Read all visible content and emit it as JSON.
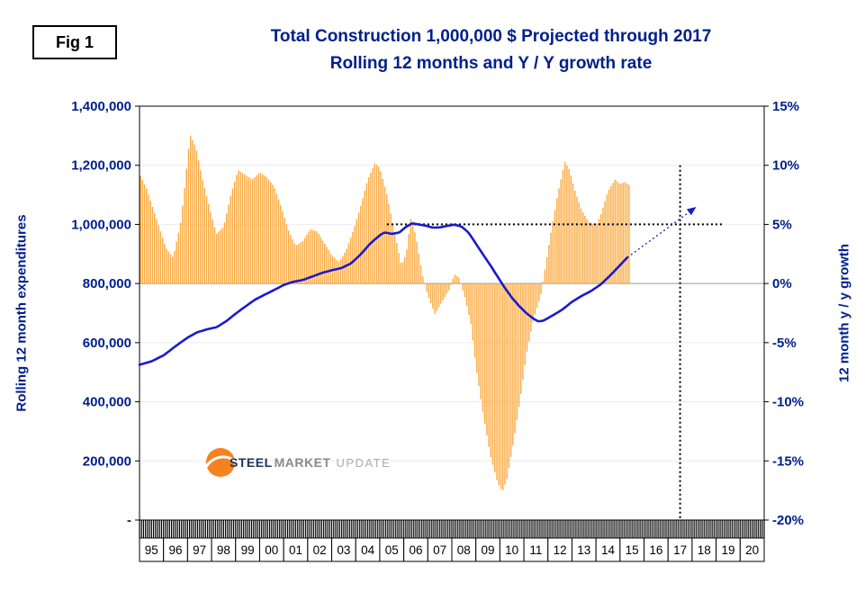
{
  "figure_label": "Fig 1",
  "title": {
    "line1": "Total Construction 1,000,000 $ Projected through 2017",
    "line2": "Rolling 12 months and Y / Y growth rate"
  },
  "logo": {
    "steel": "STEEL",
    "market": "MARKET",
    "update": "UPDATE"
  },
  "colors": {
    "navy": "#00208B",
    "bar": "#F9A93F",
    "line": "#1A1ACD",
    "black": "#000000",
    "grid": "#ECECEC",
    "logo_orange": "#F58220",
    "logo_navy": "#17365D",
    "logo_gray": "#8A8A8A",
    "logo_light_gray": "#ADADAD"
  },
  "chart_data": {
    "type": "combo",
    "title": "Total Construction 1,000,000 $ Projected through 2017 — Rolling 12 months and Y / Y growth rate",
    "x_axis": {
      "unit": "year",
      "range": [
        1995,
        2021
      ],
      "year_labels": [
        "95",
        "96",
        "97",
        "98",
        "99",
        "00",
        "01",
        "02",
        "03",
        "04",
        "05",
        "06",
        "07",
        "08",
        "09",
        "10",
        "11",
        "12",
        "13",
        "14",
        "15",
        "16",
        "17",
        "18",
        "19",
        "20"
      ]
    },
    "left_axis": {
      "label": "Rolling 12 month expenditures",
      "range": [
        0,
        1400000
      ],
      "ticks": [
        {
          "v": 1400000,
          "label": "1,400,000"
        },
        {
          "v": 1200000,
          "label": "1,200,000"
        },
        {
          "v": 1000000,
          "label": "1,000,000"
        },
        {
          "v": 800000,
          "label": "800,000"
        },
        {
          "v": 600000,
          "label": "600,000"
        },
        {
          "v": 400000,
          "label": "400,000"
        },
        {
          "v": 200000,
          "label": "200,000"
        },
        {
          "v": 0,
          "label": "-"
        }
      ]
    },
    "right_axis": {
      "label": "12 month y / y growth",
      "range": [
        -20,
        15
      ],
      "ticks": [
        {
          "v": 15,
          "label": "15%"
        },
        {
          "v": 10,
          "label": "10%"
        },
        {
          "v": 5,
          "label": "5%"
        },
        {
          "v": 0,
          "label": "0%"
        },
        {
          "v": -5,
          "label": "-5%"
        },
        {
          "v": -10,
          "label": "-10%"
        },
        {
          "v": -15,
          "label": "-15%"
        },
        {
          "v": -20,
          "label": "-20%"
        }
      ]
    },
    "series": [
      {
        "name": "Year / year growth rate (monthly bars)",
        "type": "bar",
        "axis": "right",
        "color": "#F9A93F",
        "x_end": 2015.42,
        "keypoints": [
          [
            1995.0,
            9.3
          ],
          [
            1995.3,
            8.0
          ],
          [
            1995.7,
            5.5
          ],
          [
            1996.1,
            3.0
          ],
          [
            1996.4,
            2.2
          ],
          [
            1996.7,
            5.0
          ],
          [
            1996.9,
            8.5
          ],
          [
            1997.1,
            12.6
          ],
          [
            1997.35,
            11.5
          ],
          [
            1997.6,
            9.0
          ],
          [
            1997.9,
            6.5
          ],
          [
            1998.2,
            4.2
          ],
          [
            1998.5,
            4.8
          ],
          [
            1998.8,
            7.5
          ],
          [
            1999.1,
            9.6
          ],
          [
            1999.4,
            9.2
          ],
          [
            1999.7,
            8.8
          ],
          [
            2000.0,
            9.4
          ],
          [
            2000.3,
            9.0
          ],
          [
            2000.6,
            8.2
          ],
          [
            2000.9,
            6.5
          ],
          [
            2001.2,
            4.5
          ],
          [
            2001.5,
            3.2
          ],
          [
            2001.8,
            3.6
          ],
          [
            2002.1,
            4.6
          ],
          [
            2002.4,
            4.4
          ],
          [
            2002.7,
            3.4
          ],
          [
            2003.0,
            2.4
          ],
          [
            2003.3,
            1.8
          ],
          [
            2003.6,
            2.8
          ],
          [
            2003.9,
            4.5
          ],
          [
            2004.2,
            6.5
          ],
          [
            2004.5,
            8.8
          ],
          [
            2004.8,
            10.2
          ],
          [
            2005.0,
            9.8
          ],
          [
            2005.3,
            7.5
          ],
          [
            2005.6,
            4.5
          ],
          [
            2005.9,
            1.5
          ],
          [
            2006.1,
            2.5
          ],
          [
            2006.3,
            5.6
          ],
          [
            2006.5,
            4.0
          ],
          [
            2006.8,
            0.5
          ],
          [
            2007.0,
            -1.0
          ],
          [
            2007.3,
            -2.6
          ],
          [
            2007.6,
            -1.5
          ],
          [
            2007.9,
            -0.5
          ],
          [
            2008.1,
            0.8
          ],
          [
            2008.3,
            0.5
          ],
          [
            2008.55,
            -1.2
          ],
          [
            2008.8,
            -3.5
          ],
          [
            2009.0,
            -7.0
          ],
          [
            2009.3,
            -11.0
          ],
          [
            2009.6,
            -14.5
          ],
          [
            2009.9,
            -16.8
          ],
          [
            2010.1,
            -17.6
          ],
          [
            2010.3,
            -16.5
          ],
          [
            2010.6,
            -13.0
          ],
          [
            2010.9,
            -9.0
          ],
          [
            2011.1,
            -6.0
          ],
          [
            2011.4,
            -3.0
          ],
          [
            2011.7,
            -1.0
          ],
          [
            2011.9,
            1.5
          ],
          [
            2012.1,
            4.0
          ],
          [
            2012.4,
            7.5
          ],
          [
            2012.7,
            10.3
          ],
          [
            2012.9,
            9.6
          ],
          [
            2013.1,
            8.0
          ],
          [
            2013.4,
            6.2
          ],
          [
            2013.7,
            5.2
          ],
          [
            2014.0,
            4.9
          ],
          [
            2014.2,
            5.8
          ],
          [
            2014.5,
            7.8
          ],
          [
            2014.8,
            8.8
          ],
          [
            2015.0,
            8.4
          ],
          [
            2015.2,
            8.6
          ],
          [
            2015.4,
            8.3
          ]
        ]
      },
      {
        "name": "Rolling 12 month expenditures",
        "type": "line",
        "axis": "left",
        "color": "#1A1ACD",
        "x_end": 2015.3,
        "keypoints": [
          [
            1995.0,
            525000
          ],
          [
            1995.5,
            537000
          ],
          [
            1996.0,
            557000
          ],
          [
            1996.5,
            588000
          ],
          [
            1997.0,
            617000
          ],
          [
            1997.4,
            635000
          ],
          [
            1997.8,
            645000
          ],
          [
            1998.2,
            652000
          ],
          [
            1998.6,
            672000
          ],
          [
            1999.0,
            698000
          ],
          [
            1999.4,
            722000
          ],
          [
            1999.8,
            745000
          ],
          [
            2000.2,
            762000
          ],
          [
            2000.6,
            778000
          ],
          [
            2001.0,
            795000
          ],
          [
            2001.4,
            806000
          ],
          [
            2001.8,
            812000
          ],
          [
            2002.2,
            824000
          ],
          [
            2002.6,
            836000
          ],
          [
            2003.0,
            845000
          ],
          [
            2003.4,
            852000
          ],
          [
            2003.8,
            868000
          ],
          [
            2004.2,
            898000
          ],
          [
            2004.6,
            935000
          ],
          [
            2005.0,
            963000
          ],
          [
            2005.2,
            973000
          ],
          [
            2005.5,
            968000
          ],
          [
            2005.8,
            972000
          ],
          [
            2006.1,
            992000
          ],
          [
            2006.35,
            1004000
          ],
          [
            2006.6,
            1000000
          ],
          [
            2006.9,
            996000
          ],
          [
            2007.2,
            989000
          ],
          [
            2007.5,
            990000
          ],
          [
            2007.8,
            995000
          ],
          [
            2008.1,
            999000
          ],
          [
            2008.4,
            993000
          ],
          [
            2008.7,
            972000
          ],
          [
            2009.0,
            935000
          ],
          [
            2009.3,
            898000
          ],
          [
            2009.6,
            862000
          ],
          [
            2009.9,
            824000
          ],
          [
            2010.2,
            786000
          ],
          [
            2010.5,
            752000
          ],
          [
            2010.8,
            724000
          ],
          [
            2011.1,
            700000
          ],
          [
            2011.4,
            681000
          ],
          [
            2011.6,
            672000
          ],
          [
            2011.8,
            674000
          ],
          [
            2012.0,
            683000
          ],
          [
            2012.3,
            697000
          ],
          [
            2012.6,
            712000
          ],
          [
            2013.0,
            738000
          ],
          [
            2013.4,
            758000
          ],
          [
            2013.8,
            775000
          ],
          [
            2014.2,
            797000
          ],
          [
            2014.6,
            828000
          ],
          [
            2015.0,
            862000
          ],
          [
            2015.3,
            888000
          ]
        ]
      }
    ],
    "projection": {
      "name": "Projection through 2017",
      "axis": "left",
      "style": "dotted",
      "arrow": true,
      "color": "#1A1ACD",
      "from": [
        2015.3,
        888000
      ],
      "to": [
        2018.05,
        1052000
      ]
    },
    "reference_lines": [
      {
        "orientation": "horizontal",
        "axis": "right",
        "value": 5,
        "from_x": 2005.3,
        "to_x": 2019.3,
        "style": "dotted",
        "color": "#000000"
      },
      {
        "orientation": "vertical",
        "x": 2017.5,
        "axis": "right",
        "from": -20,
        "to": 10,
        "style": "dotted",
        "color": "#000000"
      }
    ]
  }
}
